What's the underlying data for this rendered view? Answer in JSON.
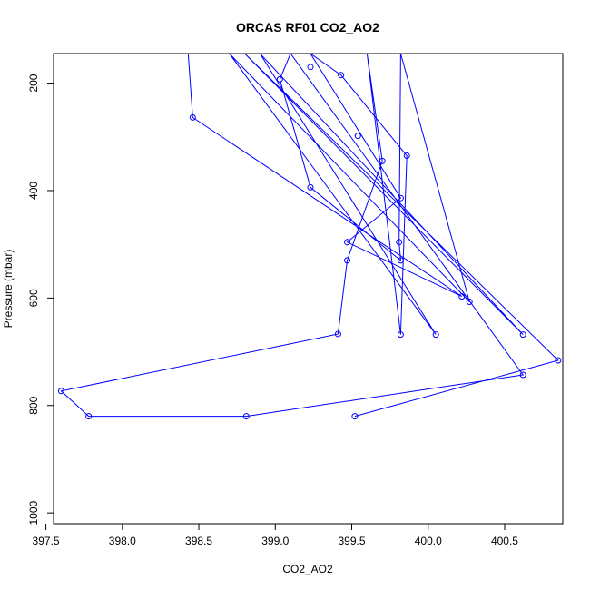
{
  "chart_data": {
    "type": "line",
    "title": "ORCAS RF01 CO2_AO2",
    "xlabel": "CO2_AO2",
    "ylabel": "Pressure (mbar)",
    "xlim": [
      397.55,
      400.88
    ],
    "ylim": [
      1020,
      145
    ],
    "y_reversed": true,
    "xticks": [
      {
        "value": 397.5,
        "label": "397.5"
      },
      {
        "value": 398.0,
        "label": "398.0"
      },
      {
        "value": 398.5,
        "label": "398.5"
      },
      {
        "value": 399.0,
        "label": "399.0"
      },
      {
        "value": 399.5,
        "label": "399.5"
      },
      {
        "value": 400.0,
        "label": "400.0"
      },
      {
        "value": 400.5,
        "label": "400.5"
      }
    ],
    "yticks": [
      {
        "value": 200,
        "label": "200"
      },
      {
        "value": 400,
        "label": "400"
      },
      {
        "value": 600,
        "label": "600"
      },
      {
        "value": 800,
        "label": "800"
      },
      {
        "value": 1000,
        "label": "1000"
      }
    ],
    "grid": false,
    "legend": "none",
    "series": [
      {
        "color": "#0000ff",
        "points": [
          [
            398.43,
            145
          ],
          [
            398.46,
            264
          ],
          [
            400.22,
            597
          ],
          [
            399.47,
            496
          ],
          [
            399.82,
            414
          ],
          [
            399.23,
            145
          ],
          [
            399.43,
            185
          ],
          [
            399.86,
            335
          ],
          [
            399.82,
            668
          ],
          [
            399.6,
            145
          ],
          [
            399.7,
            345
          ],
          [
            399.47,
            530
          ],
          [
            399.41,
            667
          ],
          [
            397.6,
            773
          ],
          [
            397.78,
            820
          ],
          [
            398.81,
            820
          ],
          [
            400.62,
            743
          ],
          [
            399.1,
            145
          ],
          [
            399.03,
            193
          ],
          [
            399.23,
            394
          ],
          [
            399.82,
            530
          ],
          [
            399.81,
            496
          ],
          [
            399.82,
            145
          ],
          [
            400.27,
            607
          ],
          [
            398.7,
            145
          ],
          [
            400.05,
            668
          ],
          [
            398.9,
            145
          ],
          [
            400.62,
            668
          ],
          [
            398.8,
            145
          ],
          [
            400.85,
            716
          ],
          [
            399.52,
            820
          ]
        ],
        "markers": [
          [
            398.46,
            264
          ],
          [
            400.22,
            597
          ],
          [
            399.47,
            496
          ],
          [
            399.82,
            414
          ],
          [
            399.43,
            185
          ],
          [
            399.86,
            335
          ],
          [
            399.82,
            668
          ],
          [
            399.7,
            345
          ],
          [
            399.47,
            530
          ],
          [
            399.41,
            667
          ],
          [
            397.6,
            773
          ],
          [
            397.78,
            820
          ],
          [
            398.81,
            820
          ],
          [
            400.62,
            743
          ],
          [
            399.03,
            193
          ],
          [
            399.23,
            394
          ],
          [
            399.82,
            530
          ],
          [
            399.81,
            496
          ],
          [
            400.27,
            607
          ],
          [
            400.05,
            668
          ],
          [
            400.62,
            668
          ],
          [
            400.85,
            716
          ],
          [
            399.52,
            820
          ],
          [
            399.23,
            170
          ],
          [
            399.54,
            298
          ]
        ]
      }
    ]
  }
}
